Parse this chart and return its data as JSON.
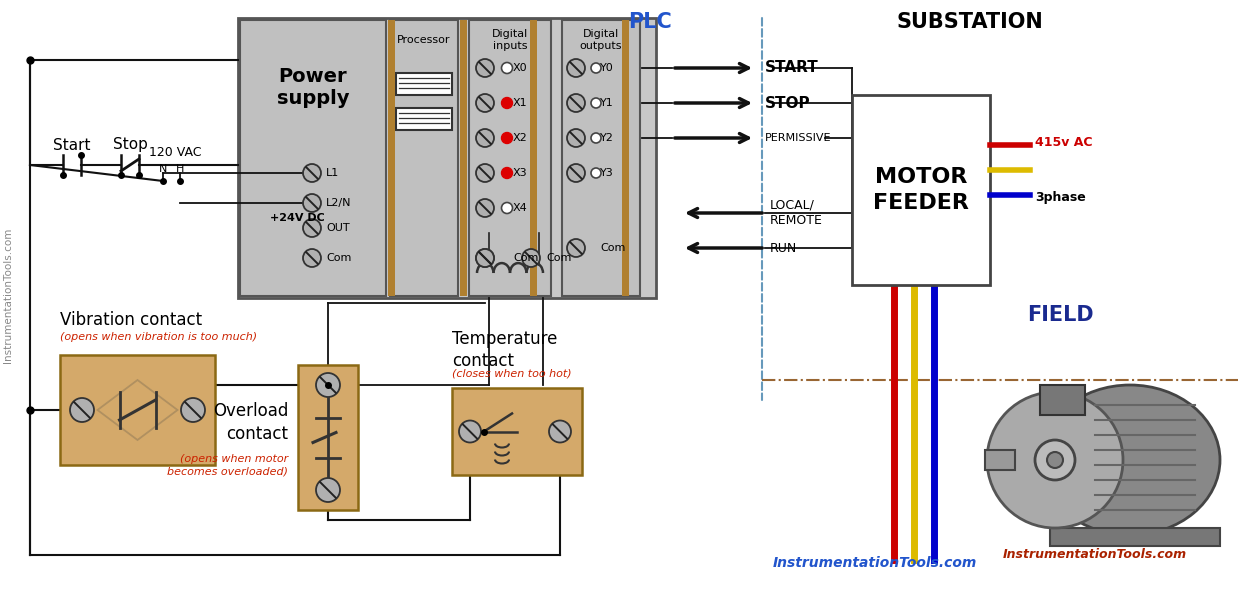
{
  "bg_color": "#ffffff",
  "plc_bg": "#c8c8c8",
  "plc_border": "#555555",
  "tan_color": "#D4A96A",
  "tan_border": "#8B6914",
  "title_color": "#2255cc",
  "red_color": "#cc0000",
  "red_dot": "#dd0000",
  "yellow_color": "#ddbb00",
  "blue_color": "#0000cc",
  "arrow_color": "#111111",
  "text_black": "#000000",
  "text_red": "#cc2200",
  "watermark_color": "#888888",
  "field_color": "#1a2a8f",
  "plc_label": "PLC",
  "substation_label": "SUBSTATION",
  "field_label": "FIELD",
  "power_supply_label": "Power\nsupply",
  "processor_label": "Processor",
  "digital_inputs_label": "Digital\ninputs",
  "digital_outputs_label": "Digital\noutputs",
  "motor_feeder_label": "MOTOR\nFEEDER",
  "voltage_label": "415v AC",
  "phase_label": "3phase",
  "start_label": "Start",
  "stop_label": "Stop",
  "vac_label": "120 VAC",
  "dc_label": "+24V DC",
  "vibration_label": "Vibration contact",
  "vibration_sub": "(opens when vibration is too much)",
  "overload_label": "Overload\ncontact",
  "overload_sub": "(opens when motor\nbecomes overloaded)",
  "temp_label": "Temperature\ncontact",
  "temp_sub": "(closes when too hot)",
  "url_label": "InstrumentationTools.com",
  "url_side": "InstrumentationTools.com",
  "inputs": [
    "X0",
    "X1",
    "X2",
    "X3",
    "X4"
  ],
  "outputs": [
    "Y0",
    "Y1",
    "Y2",
    "Y3"
  ],
  "input_red": [
    false,
    true,
    true,
    true,
    false
  ],
  "plc_signals_out": [
    "START",
    "STOP",
    "PERMISSIVE"
  ],
  "plc_signals_in": [
    "LOCAL/\nREMOTE",
    "RUN"
  ],
  "ps_labels": [
    "L1",
    "L2/N",
    "OUT",
    "Com"
  ],
  "brown_color": "#8B6914",
  "dashed_v_color": "#6699bb",
  "dashed_h_color": "#996633",
  "wire_lw": 5
}
